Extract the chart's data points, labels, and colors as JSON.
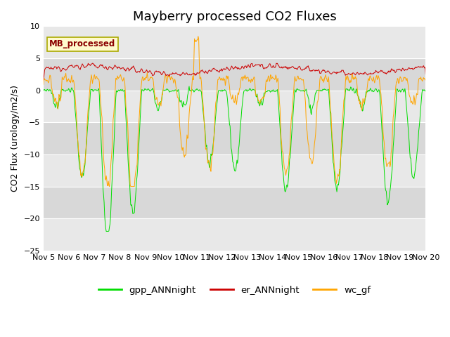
{
  "title": "Mayberry processed CO2 Fluxes",
  "ylabel": "CO2 Flux (urology/m2/s)",
  "ylim": [
    -25,
    10
  ],
  "yticks": [
    -25,
    -20,
    -15,
    -10,
    -5,
    0,
    5,
    10
  ],
  "x_tick_labels": [
    "Nov 5",
    "Nov 6",
    "Nov 7",
    "Nov 8",
    "Nov 9",
    "Nov 10",
    "Nov 11",
    "Nov 12",
    "Nov 13",
    "Nov 14",
    "Nov 15",
    "Nov 16",
    "Nov 17",
    "Nov 18",
    "Nov 19",
    "Nov 20"
  ],
  "legend_label": "MB_processed",
  "legend_label_color": "#8B0000",
  "legend_box_facecolor": "#FFFACD",
  "legend_box_edgecolor": "#AAAA00",
  "line_colors": {
    "gpp_ANNnight": "#00DD00",
    "er_ANNnight": "#CC0000",
    "wc_gf": "#FFA500"
  },
  "plot_bg_light": "#E8E8E8",
  "plot_bg_dark": "#D0D0D0",
  "grid_color": "#C8C8C8",
  "title_fontsize": 13,
  "label_fontsize": 9,
  "tick_fontsize": 8,
  "n_days": 15,
  "pts_per_day": 48
}
